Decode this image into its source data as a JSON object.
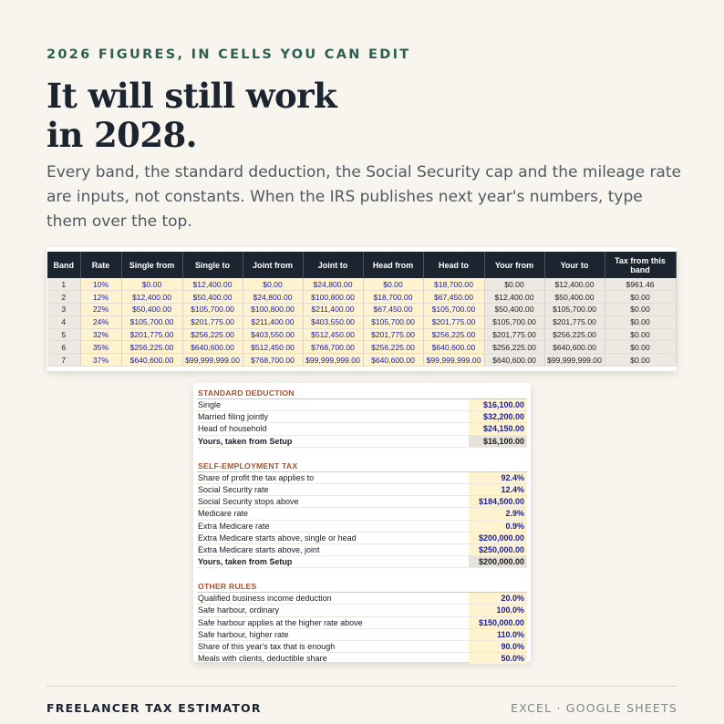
{
  "eyebrow": "2026 FIGURES, IN CELLS YOU CAN EDIT",
  "headline": {
    "line1": "It will still work",
    "line2": "in 2028."
  },
  "subhead": "Every band, the standard deduction, the Social Security cap and the mileage rate are inputs, not constants. When the IRS publishes next year's numbers, type them over the top.",
  "bands_table": {
    "headers": [
      "Band",
      "Rate",
      "Single from",
      "Single to",
      "Joint from",
      "Joint to",
      "Head from",
      "Head to",
      "Your from",
      "Your to",
      "Tax from this band"
    ],
    "rows": [
      [
        "1",
        "10%",
        "$0.00",
        "$12,400.00",
        "$0.00",
        "$24,800.00",
        "$0.00",
        "$18,700.00",
        "$0.00",
        "$12,400.00",
        "$961.46"
      ],
      [
        "2",
        "12%",
        "$12,400.00",
        "$50,400.00",
        "$24,800.00",
        "$100,800.00",
        "$18,700.00",
        "$67,450.00",
        "$12,400.00",
        "$50,400.00",
        "$0.00"
      ],
      [
        "3",
        "22%",
        "$50,400.00",
        "$105,700.00",
        "$100,800.00",
        "$211,400.00",
        "$67,450.00",
        "$105,700.00",
        "$50,400.00",
        "$105,700.00",
        "$0.00"
      ],
      [
        "4",
        "24%",
        "$105,700.00",
        "$201,775.00",
        "$211,400.00",
        "$403,550.00",
        "$105,700.00",
        "$201,775.00",
        "$105,700.00",
        "$201,775.00",
        "$0.00"
      ],
      [
        "5",
        "32%",
        "$201,775.00",
        "$256,225.00",
        "$403,550.00",
        "$512,450.00",
        "$201,775.00",
        "$256,225.00",
        "$201,775.00",
        "$256,225.00",
        "$0.00"
      ],
      [
        "6",
        "35%",
        "$256,225.00",
        "$640,600.00",
        "$512,450.00",
        "$768,700.00",
        "$256,225.00",
        "$640,600.00",
        "$256,225.00",
        "$640,600.00",
        "$0.00"
      ],
      [
        "7",
        "37%",
        "$640,600.00",
        "$99,999,999.00",
        "$768,700.00",
        "$99,999,999.00",
        "$640,600.00",
        "$99,999,999.00",
        "$640,600.00",
        "$99,999,999.00",
        "$0.00"
      ]
    ]
  },
  "settings": {
    "standard_deduction": {
      "title": "STANDARD DEDUCTION",
      "rows": [
        {
          "label": "Single",
          "value": "$16,100.00"
        },
        {
          "label": "Married filing jointly",
          "value": "$32,200.00"
        },
        {
          "label": "Head of household",
          "value": "$24,150.00"
        },
        {
          "label": "Yours, taken from Setup",
          "value": "$16,100.00"
        }
      ]
    },
    "self_employment": {
      "title": "SELF-EMPLOYMENT TAX",
      "rows": [
        {
          "label": "Share of profit the tax applies to",
          "value": "92.4%"
        },
        {
          "label": "Social Security rate",
          "value": "12.4%"
        },
        {
          "label": "Social Security stops above",
          "value": "$184,500.00"
        },
        {
          "label": "Medicare rate",
          "value": "2.9%"
        },
        {
          "label": "Extra Medicare rate",
          "value": "0.9%"
        },
        {
          "label": "Extra Medicare starts above, single or head",
          "value": "$200,000.00"
        },
        {
          "label": "Extra Medicare starts above, joint",
          "value": "$250,000.00"
        },
        {
          "label": "Yours, taken from Setup",
          "value": "$200,000.00"
        }
      ]
    },
    "other_rules": {
      "title": "OTHER RULES",
      "rows": [
        {
          "label": "Qualified business income deduction",
          "value": "20.0%"
        },
        {
          "label": "Safe harbour, ordinary",
          "value": "100.0%"
        },
        {
          "label": "Safe harbour applies at the higher rate above",
          "value": "$150,000.00"
        },
        {
          "label": "Safe harbour, higher rate",
          "value": "110.0%"
        },
        {
          "label": "Share of this year's tax that is enough",
          "value": "90.0%"
        },
        {
          "label": "Meals with clients, deductible share",
          "value": "50.0%"
        }
      ]
    }
  },
  "footer": {
    "product": "FREELANCER TAX ESTIMATOR",
    "platforms": "EXCEL · GOOGLE SHEETS"
  },
  "colors": {
    "background": "#f8f5ee",
    "eyebrow": "#2e5e53",
    "header_dark": "#1c2430",
    "input_fill": "#fff3cf",
    "input_text": "#1a21a8",
    "section_title": "#a6512e",
    "calculated_fill": "#ece9e3"
  }
}
